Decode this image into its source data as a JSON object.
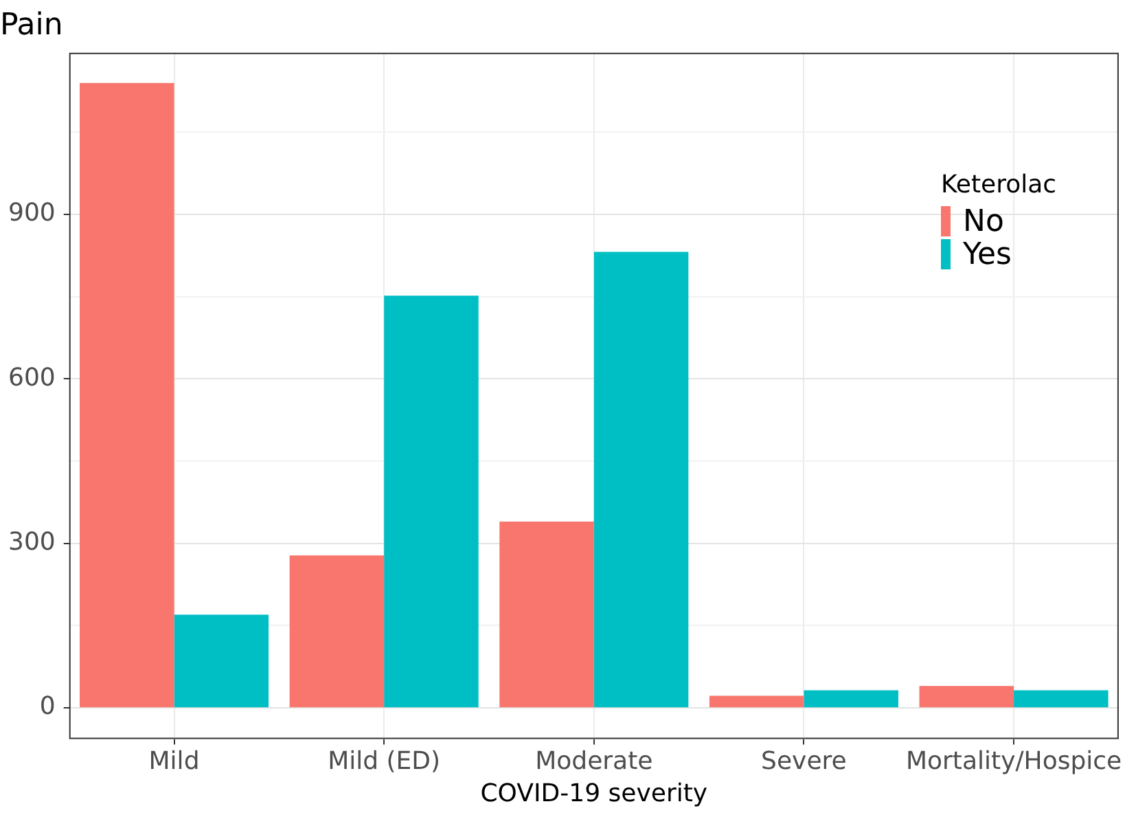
{
  "chart_data": {
    "type": "bar",
    "title": "Pain",
    "xlabel": "COVID-19 severity",
    "legend_title": "Keterolac",
    "categories": [
      "Mild",
      "Mild (ED)",
      "Moderate",
      "Severe",
      "Mortality/Hospice"
    ],
    "series": [
      {
        "name": "No",
        "color": "#f8766d",
        "values": [
          1140,
          278,
          340,
          22,
          40
        ]
      },
      {
        "name": "Yes",
        "color": "#00bfc4",
        "values": [
          170,
          752,
          832,
          32,
          32
        ]
      }
    ],
    "ylim": [
      -57,
      1195
    ],
    "yticks": [
      0,
      {
        "value": 150,
        "label": null
      },
      300,
      {
        "value": 450,
        "label": null
      },
      600,
      {
        "value": 750,
        "label": null
      },
      900,
      {
        "value": 1050,
        "label": null
      }
    ],
    "grid": true,
    "legend": "top right"
  }
}
